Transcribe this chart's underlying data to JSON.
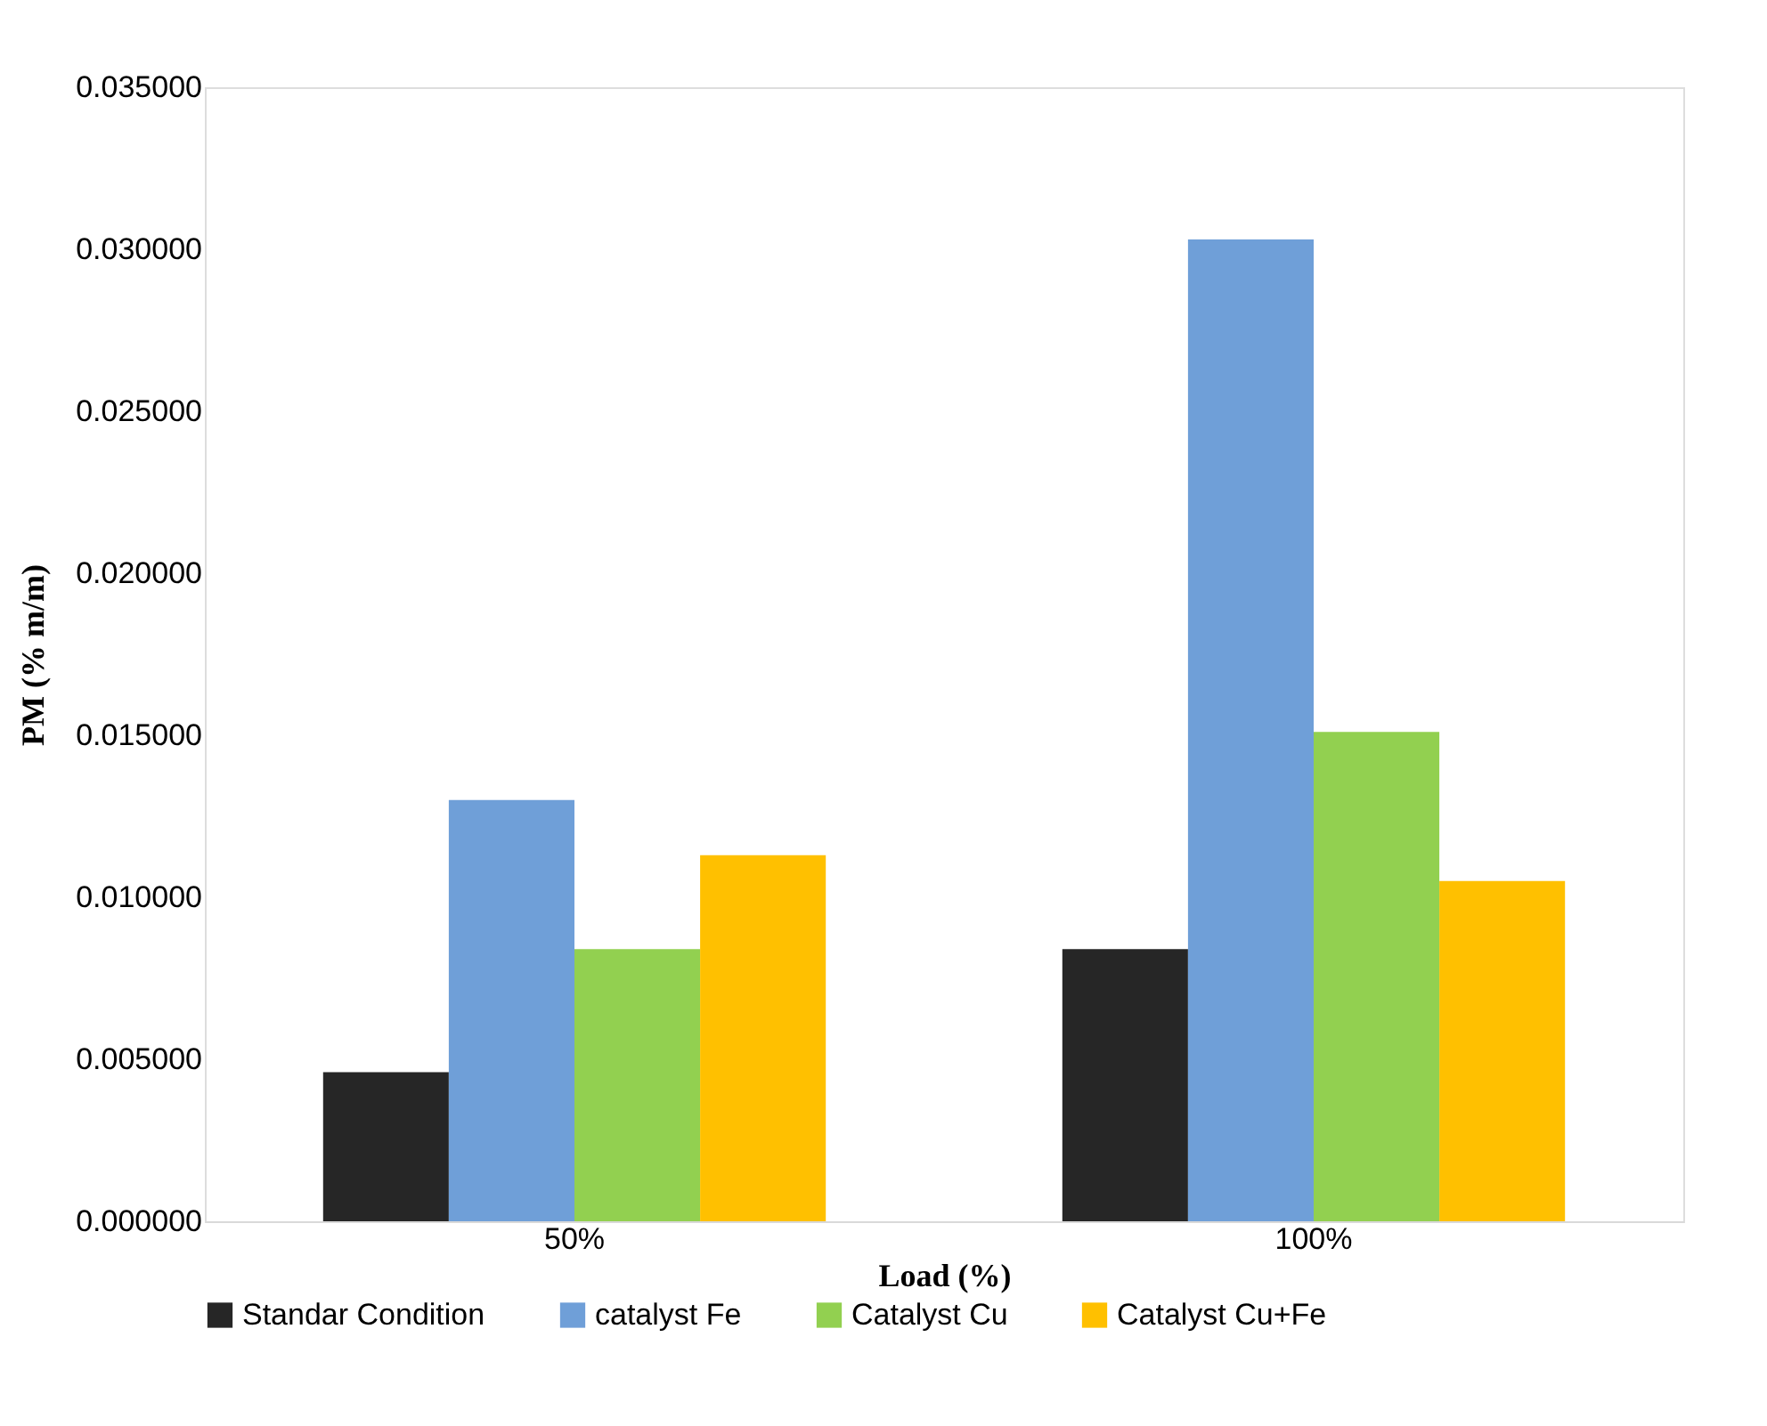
{
  "chart_data": {
    "type": "bar",
    "xlabel": "Load (%)",
    "ylabel": "PM (% m/m)",
    "categories": [
      "50%",
      "100%"
    ],
    "series": [
      {
        "name": "Standar Condition",
        "color": "#262626",
        "values": [
          0.0046,
          0.0084
        ]
      },
      {
        "name": "catalyst Fe",
        "color": "#6f9fd8",
        "values": [
          0.013,
          0.0303
        ]
      },
      {
        "name": "Catalyst Cu",
        "color": "#92d050",
        "values": [
          0.0084,
          0.0151
        ]
      },
      {
        "name": "Catalyst Cu+Fe",
        "color": "#ffc000",
        "values": [
          0.0113,
          0.0105
        ]
      }
    ],
    "ylim": [
      0,
      0.035
    ],
    "yticks": [
      {
        "value": 0,
        "label": "0.000000"
      },
      {
        "value": 0.005,
        "label": "0.005000"
      },
      {
        "value": 0.01,
        "label": "0.010000"
      },
      {
        "value": 0.015,
        "label": "0.015000"
      },
      {
        "value": 0.02,
        "label": "0.020000"
      },
      {
        "value": 0.025,
        "label": "0.025000"
      },
      {
        "value": 0.03,
        "label": "0.030000"
      },
      {
        "value": 0.035,
        "label": "0.035000"
      }
    ],
    "grid": false,
    "legend": "bottom"
  }
}
